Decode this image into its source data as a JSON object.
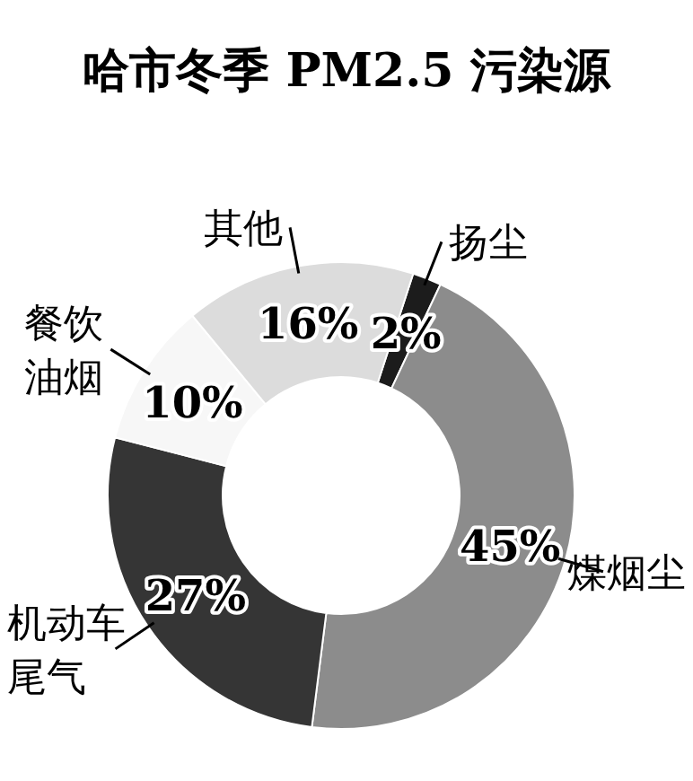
{
  "chart_data": {
    "type": "donut",
    "title": "哈市冬季 PM2.5 污染源",
    "categories": [
      "扬尘",
      "煤烟尘",
      "机动车尾气",
      "餐饮油烟",
      "其他"
    ],
    "values": [
      2,
      45,
      27,
      10,
      16
    ],
    "colors": [
      "#1c1c1c",
      "#8c8c8c",
      "#353535",
      "#f7f7f7",
      "#dcdcdc"
    ],
    "value_labels": [
      "2%",
      "45%",
      "27%",
      "10%",
      "16%"
    ]
  }
}
